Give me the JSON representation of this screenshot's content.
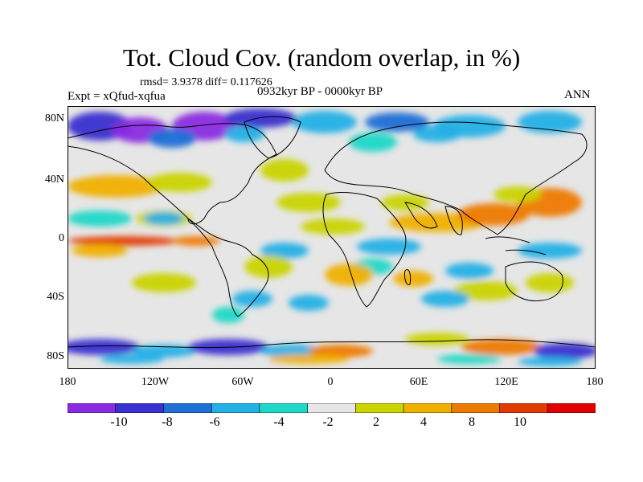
{
  "title": "Tot. Cloud Cov. (random overlap, in %)",
  "stats": "rmsd= 3.9378 diff= 0.117626",
  "expt": "Expt = xQfud-xqfua",
  "period": "0932kyr BP - 0000kyr BP",
  "season": "ANN",
  "lat_labels": [
    "80N",
    "40N",
    "0",
    "40S",
    "80S"
  ],
  "lon_labels": [
    "180",
    "120W",
    "60W",
    "0",
    "60E",
    "120E",
    "180"
  ],
  "colorbar": {
    "labels": [
      "-10",
      "-8",
      "-6",
      "-4",
      "-2",
      "2",
      "4",
      "8",
      "10"
    ],
    "colors": [
      "#8a2be2",
      "#3a2fd0",
      "#1e6fd6",
      "#22b0e6",
      "#1fd8c7",
      "#e6e6e6",
      "#c9d400",
      "#f0b000",
      "#ee7a00",
      "#e23a00",
      "#e00000"
    ]
  },
  "legend_colors": {
    "neutral": "#e6e6e6"
  }
}
